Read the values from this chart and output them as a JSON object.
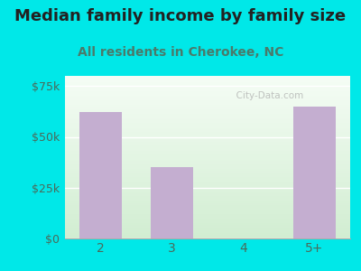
{
  "title": "Median family income by family size",
  "subtitle": "All residents in Cherokee, NC",
  "categories": [
    "2",
    "3",
    "4",
    "5+"
  ],
  "values": [
    62000,
    35000,
    0,
    65000
  ],
  "bar_color": "#c4aed0",
  "outer_bg_color": "#00e8e8",
  "gradient_top": "#f5faf5",
  "gradient_bottom": "#d0ecd0",
  "title_color": "#222222",
  "subtitle_color": "#4a7a6a",
  "tick_label_color": "#4a6a5a",
  "ytick_labels": [
    "$0",
    "$25k",
    "$50k",
    "$75k"
  ],
  "ytick_values": [
    0,
    25000,
    50000,
    75000
  ],
  "ylim": [
    0,
    80000
  ],
  "watermark_text": "  City-Data.com",
  "title_fontsize": 13,
  "subtitle_fontsize": 10,
  "figsize": [
    4.0,
    3.0
  ],
  "dpi": 100
}
